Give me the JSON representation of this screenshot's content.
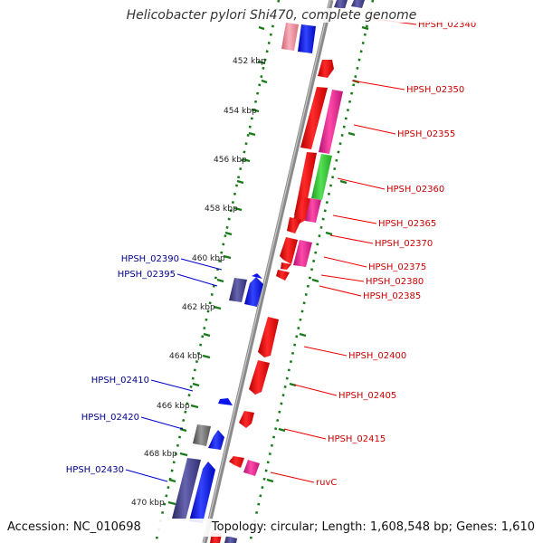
{
  "title": "Helicobacter pylori Shi470, complete genome",
  "footer": {
    "accession": "Accession: NC_010698",
    "topology": "Topology: circular; Length: 1,608,548 bp; Genes: 1,610"
  },
  "colors": {
    "red": "#ee0000",
    "magenta": "#ee1e8c",
    "green": "#33cc33",
    "blue": "#0a14ee",
    "purple": "#3c3a88",
    "gray": "#666666",
    "pink": "#f08ca0",
    "ruler": "#8a8a8a",
    "tick": "#1a7a1a",
    "label_red": "#cc0000",
    "label_blue": "#00008b"
  },
  "kbp_labels": [
    "452 kbp",
    "454 kbp",
    "456 kbp",
    "458 kbp",
    "460 kbp",
    "462 kbp",
    "464 kbp",
    "466 kbp",
    "468 kbp",
    "470 kbp"
  ],
  "genes_right": [
    "HPSH_02340",
    "HPSH_02350",
    "HPSH_02355",
    "HPSH_02360",
    "HPSH_02365",
    "HPSH_02370",
    "HPSH_02375",
    "HPSH_02380",
    "HPSH_02385",
    "HPSH_02400",
    "HPSH_02405",
    "HPSH_02415",
    "ruvC"
  ],
  "genes_left": [
    "HPSH_02390",
    "HPSH_02395",
    "HPSH_02410",
    "HPSH_02420",
    "HPSH_02430"
  ]
}
